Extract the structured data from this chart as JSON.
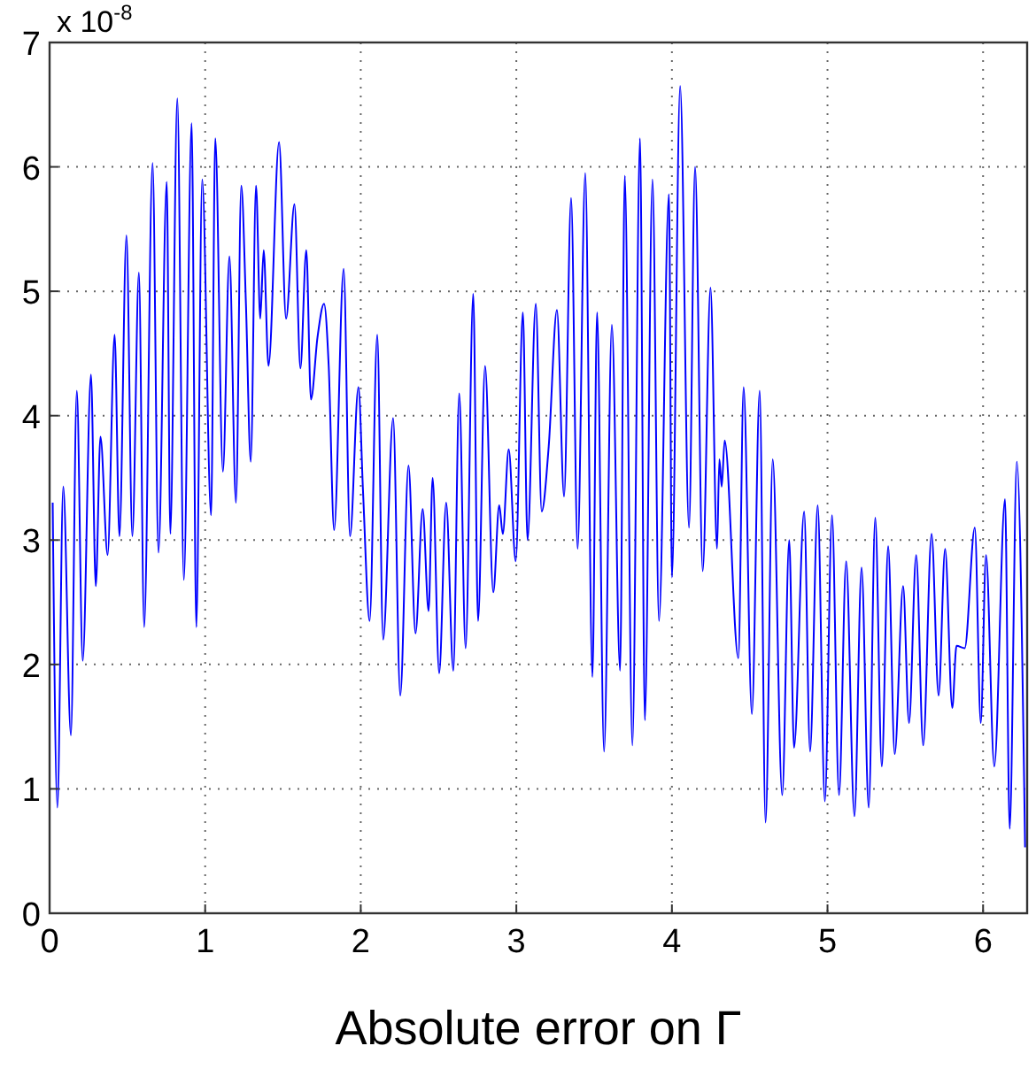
{
  "chart_data": {
    "type": "line",
    "xlabel": "Absolute error on Γ",
    "annotations": [
      "x 10$^{-8}$"
    ],
    "xlim": [
      0,
      6.2832
    ],
    "ylim": [
      0,
      7
    ],
    "xticks": [
      0,
      1,
      2,
      3,
      4,
      5,
      6
    ],
    "yticks": [
      0,
      1,
      2,
      3,
      4,
      5,
      6,
      7
    ],
    "grid": true,
    "line_style": "solid",
    "marker": "none",
    "series": [
      {
        "color": "#0000ff",
        "x": [
          0.02,
          0.05,
          0.088,
          0.137,
          0.175,
          0.213,
          0.266,
          0.297,
          0.327,
          0.373,
          0.418,
          0.449,
          0.494,
          0.532,
          0.574,
          0.608,
          0.662,
          0.7,
          0.753,
          0.776,
          0.821,
          0.863,
          0.913,
          0.943,
          0.981,
          1.038,
          1.065,
          1.114,
          1.156,
          1.198,
          1.232,
          1.262,
          1.293,
          1.327,
          1.354,
          1.376,
          1.407,
          1.475,
          1.52,
          1.574,
          1.612,
          1.65,
          1.68,
          1.722,
          1.764,
          1.794,
          1.829,
          1.89,
          1.931,
          1.985,
          2.015,
          2.057,
          2.106,
          2.144,
          2.208,
          2.254,
          2.307,
          2.352,
          2.398,
          2.436,
          2.462,
          2.504,
          2.549,
          2.595,
          2.633,
          2.674,
          2.723,
          2.754,
          2.799,
          2.852,
          2.89,
          2.913,
          2.951,
          2.996,
          3.042,
          3.072,
          3.125,
          3.163,
          3.208,
          3.261,
          3.307,
          3.352,
          3.394,
          3.443,
          3.489,
          3.519,
          3.564,
          3.614,
          3.667,
          3.697,
          3.746,
          3.795,
          3.826,
          3.875,
          3.917,
          3.981,
          4.0,
          4.053,
          4.11,
          4.149,
          4.198,
          4.248,
          4.29,
          4.305,
          4.32,
          4.339,
          4.427,
          4.461,
          4.514,
          4.564,
          4.602,
          4.648,
          4.709,
          4.754,
          4.785,
          4.85,
          4.888,
          4.937,
          4.983,
          5.029,
          5.074,
          5.12,
          5.173,
          5.219,
          5.265,
          5.307,
          5.349,
          5.39,
          5.432,
          5.486,
          5.524,
          5.57,
          5.615,
          5.669,
          5.714,
          5.756,
          5.802,
          5.829,
          5.882,
          5.947,
          5.985,
          6.019,
          6.072,
          6.141,
          6.171,
          6.217,
          6.27
        ],
        "values": [
          3.3,
          0.85,
          3.43,
          1.43,
          4.2,
          2.03,
          4.33,
          2.63,
          3.83,
          2.88,
          4.65,
          3.03,
          5.45,
          3.03,
          5.15,
          2.3,
          6.03,
          2.9,
          5.88,
          3.05,
          6.55,
          2.68,
          6.35,
          2.3,
          5.9,
          3.2,
          6.23,
          3.55,
          5.28,
          3.3,
          5.85,
          4.9,
          3.63,
          5.85,
          4.78,
          5.33,
          4.4,
          6.2,
          4.78,
          5.7,
          4.38,
          5.33,
          4.13,
          4.63,
          4.9,
          4.4,
          3.08,
          5.18,
          3.03,
          4.23,
          3.38,
          2.35,
          4.65,
          2.2,
          3.98,
          1.75,
          3.6,
          2.25,
          3.25,
          2.43,
          3.5,
          1.93,
          3.3,
          1.95,
          4.18,
          2.13,
          4.98,
          2.35,
          4.4,
          2.58,
          3.28,
          3.05,
          3.73,
          2.83,
          4.83,
          3.0,
          4.9,
          3.23,
          3.75,
          4.85,
          3.35,
          5.75,
          2.93,
          5.95,
          1.9,
          4.83,
          1.3,
          4.73,
          1.95,
          5.93,
          1.35,
          6.23,
          1.55,
          5.9,
          2.35,
          5.78,
          2.7,
          6.65,
          3.1,
          6.0,
          2.75,
          5.03,
          2.93,
          3.65,
          3.43,
          3.8,
          2.05,
          4.23,
          1.6,
          4.2,
          0.73,
          3.65,
          0.95,
          3.0,
          1.33,
          3.23,
          1.3,
          3.28,
          0.9,
          3.2,
          0.95,
          2.83,
          0.78,
          2.78,
          0.85,
          3.18,
          1.18,
          2.95,
          1.28,
          2.63,
          1.53,
          2.88,
          1.35,
          3.05,
          1.75,
          2.93,
          1.65,
          2.15,
          2.13,
          3.1,
          1.53,
          2.88,
          1.18,
          3.33,
          0.68,
          3.63,
          0.53
        ]
      }
    ]
  }
}
